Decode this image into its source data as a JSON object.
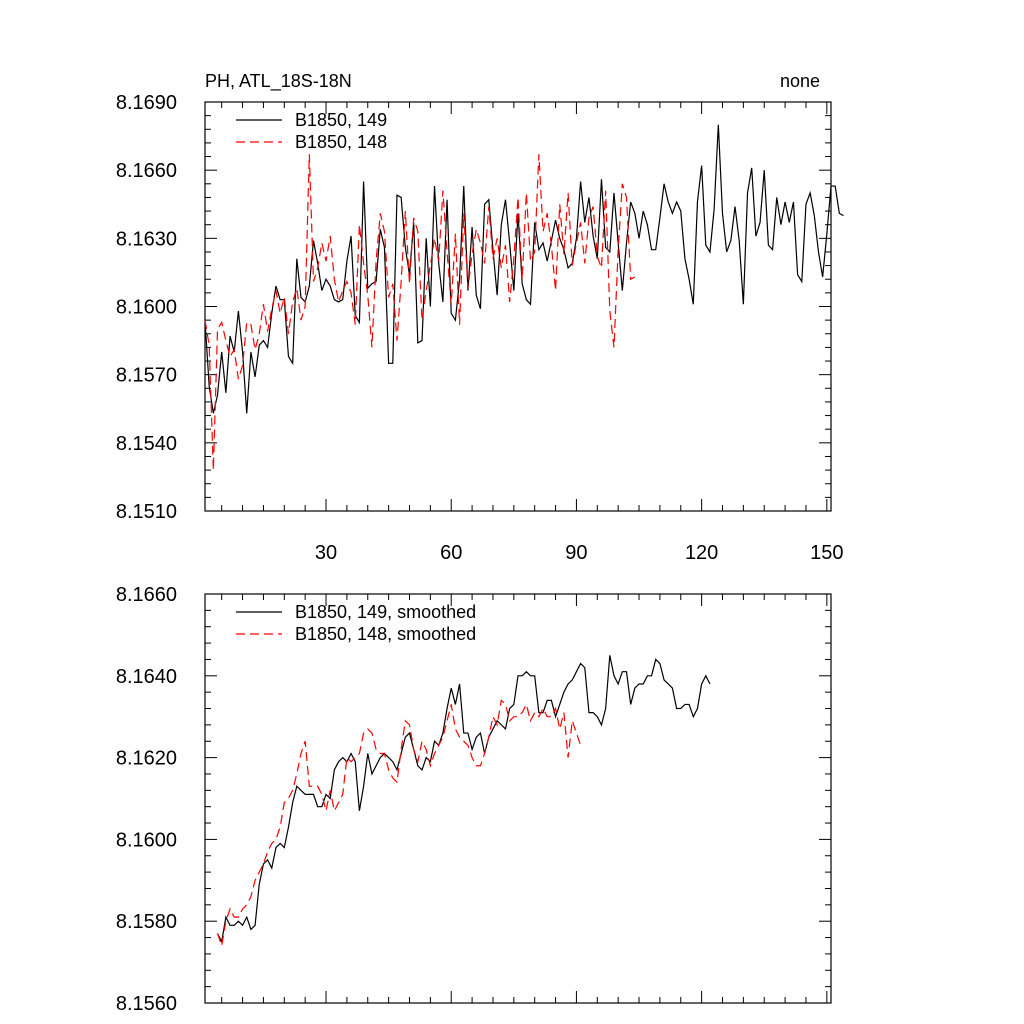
{
  "chart_data": [
    {
      "type": "line",
      "title_left": "PH, ATL_18S-18N",
      "title_right": "none",
      "xlim": [
        1,
        151
      ],
      "ylim": [
        8.151,
        8.169
      ],
      "x_ticks": [
        30,
        60,
        90,
        120,
        150
      ],
      "x_tick_labels": [
        "30",
        "60",
        "90",
        "120",
        "150"
      ],
      "y_ticks": [
        8.151,
        8.154,
        8.157,
        8.16,
        8.163,
        8.166,
        8.169
      ],
      "y_tick_labels": [
        "8.1510",
        "8.1540",
        "8.1570",
        "8.1600",
        "8.1630",
        "8.1660",
        "8.1690"
      ],
      "series": [
        {
          "name": "B1850, 149",
          "color": "#000000",
          "dash": "solid",
          "x_start": 1,
          "values": [
            8.1594,
            8.1565,
            8.1553,
            8.1561,
            8.158,
            8.1562,
            8.1587,
            8.158,
            8.1598,
            8.158,
            8.1553,
            8.158,
            8.1569,
            8.1583,
            8.1585,
            8.1582,
            8.1597,
            8.1609,
            8.1603,
            8.1603,
            8.1578,
            8.1575,
            8.1621,
            8.1604,
            8.1602,
            8.1609,
            8.1629,
            8.1619,
            8.1607,
            8.1612,
            8.1609,
            8.1603,
            8.1602,
            8.1603,
            8.162,
            8.1631,
            8.1596,
            8.1593,
            8.1655,
            8.1608,
            8.161,
            8.1611,
            8.1634,
            8.1626,
            8.1575,
            8.1575,
            8.1649,
            8.1648,
            8.1626,
            8.1614,
            8.1637,
            8.1584,
            8.1585,
            8.163,
            8.16,
            8.1653,
            8.1619,
            8.1602,
            8.1647,
            8.1597,
            8.1594,
            8.1612,
            8.1653,
            8.1607,
            8.1635,
            8.1605,
            8.1599,
            8.1645,
            8.1647,
            8.1625,
            8.1605,
            8.1636,
            8.1647,
            8.1628,
            8.1607,
            8.1641,
            8.161,
            8.1603,
            8.1601,
            8.1637,
            8.1625,
            8.1628,
            8.162,
            8.1629,
            8.1638,
            8.163,
            8.1625,
            8.1617,
            8.1619,
            8.163,
            8.1655,
            8.1637,
            8.1648,
            8.1631,
            8.1621,
            8.1656,
            8.1626,
            8.1624,
            8.165,
            8.1628,
            8.1607,
            8.1628,
            8.1646,
            8.1641,
            8.163,
            8.1642,
            8.1636,
            8.1625,
            8.1625,
            8.1639,
            8.1654,
            8.1646,
            8.1641,
            8.1646,
            8.1642,
            8.1621,
            8.1612,
            8.1601,
            8.1646,
            8.1662,
            8.1627,
            8.1624,
            8.1643,
            8.168,
            8.1641,
            8.1624,
            8.1629,
            8.1644,
            8.1629,
            8.1601,
            8.165,
            8.1661,
            8.1631,
            8.1637,
            8.166,
            8.1627,
            8.1625,
            8.1648,
            8.1636,
            8.1646,
            8.1637,
            8.1646,
            8.1614,
            8.1611,
            8.1645,
            8.165,
            8.164,
            8.1624,
            8.1613,
            8.1632,
            8.1653,
            8.1653,
            8.1641,
            8.164
          ]
        },
        {
          "name": "B1850, 148",
          "color": "#ff0000",
          "dash": "dashed",
          "x_start": 1,
          "values": [
            8.1594,
            8.1583,
            8.1528,
            8.159,
            8.1593,
            8.1585,
            8.1578,
            8.1581,
            8.1568,
            8.1574,
            8.1593,
            8.1592,
            8.1581,
            8.1588,
            8.1601,
            8.1589,
            8.1599,
            8.1607,
            8.1597,
            8.1604,
            8.1588,
            8.1602,
            8.1608,
            8.1594,
            8.16,
            8.1667,
            8.1611,
            8.1617,
            8.1628,
            8.162,
            8.1631,
            8.1612,
            8.1602,
            8.1607,
            8.1611,
            8.1606,
            8.1592,
            8.1636,
            8.1619,
            8.1605,
            8.1582,
            8.162,
            8.1641,
            8.1633,
            8.1604,
            8.161,
            8.1585,
            8.1611,
            8.1642,
            8.161,
            8.1639,
            8.1633,
            8.1594,
            8.1607,
            8.1618,
            8.163,
            8.162,
            8.1651,
            8.1624,
            8.1601,
            8.1632,
            8.1592,
            8.1641,
            8.1608,
            8.1623,
            8.1634,
            8.1628,
            8.1619,
            8.1644,
            8.1621,
            8.163,
            8.1617,
            8.1627,
            8.1602,
            8.1621,
            8.1648,
            8.1612,
            8.165,
            8.162,
            8.1624,
            8.1667,
            8.1633,
            8.1641,
            8.1627,
            8.1607,
            8.1645,
            8.1623,
            8.165,
            8.1618,
            8.1628,
            8.1637,
            8.1619,
            8.1639,
            8.1644,
            8.1622,
            8.1617,
            8.1651,
            8.1598,
            8.1582,
            8.1625,
            8.1654,
            8.1648,
            8.1612,
            8.1613
          ]
        }
      ]
    },
    {
      "type": "line",
      "xlim": [
        1,
        151
      ],
      "ylim": [
        8.156,
        8.166
      ],
      "x_ticks": [
        30,
        60,
        90,
        120,
        150
      ],
      "y_ticks": [
        8.156,
        8.158,
        8.16,
        8.162,
        8.164,
        8.166
      ],
      "y_tick_labels": [
        "8.1560",
        "8.1580",
        "8.1600",
        "8.1620",
        "8.1640",
        "8.1660"
      ],
      "series": [
        {
          "name": "B1850, 149, smoothed",
          "color": "#000000",
          "dash": "solid",
          "x_start": 4,
          "values": [
            8.1577,
            8.1575,
            8.1581,
            8.1579,
            8.1579,
            8.158,
            8.1579,
            8.1581,
            8.1578,
            8.1579,
            8.1589,
            8.1594,
            8.1595,
            8.1593,
            8.1598,
            8.1599,
            8.1598,
            8.1603,
            8.1609,
            8.1613,
            8.1612,
            8.1611,
            8.1611,
            8.1611,
            8.1608,
            8.1608,
            8.1611,
            8.161,
            8.1617,
            8.1619,
            8.162,
            8.1619,
            8.1621,
            8.1619,
            8.1607,
            8.1613,
            8.1621,
            8.1616,
            8.1618,
            8.162,
            8.1621,
            8.162,
            8.1619,
            8.1617,
            8.1621,
            8.1625,
            8.1626,
            8.1622,
            8.1618,
            8.1617,
            8.162,
            8.1619,
            8.1624,
            8.1623,
            8.1626,
            8.1632,
            8.1637,
            8.1633,
            8.1638,
            8.1626,
            8.1626,
            8.1622,
            8.1625,
            8.1626,
            8.1621,
            8.1625,
            8.1627,
            8.1629,
            8.1628,
            8.1627,
            8.1632,
            8.1633,
            8.164,
            8.164,
            8.1641,
            8.164,
            8.164,
            8.1631,
            8.1631,
            8.1634,
            8.1634,
            8.163,
            8.1633,
            8.1636,
            8.1638,
            8.1639,
            8.1641,
            8.1643,
            8.1642,
            8.1631,
            8.1631,
            8.163,
            8.1628,
            8.1632,
            8.1645,
            8.164,
            8.1638,
            8.1641,
            8.1641,
            8.1633,
            8.1637,
            8.1638,
            8.1638,
            8.164,
            8.164,
            8.1644,
            8.1643,
            8.1639,
            8.1638,
            8.1637,
            8.1632,
            8.1632,
            8.1633,
            8.1633,
            8.163,
            8.1632,
            8.1638,
            8.164,
            8.1638
          ]
        },
        {
          "name": "B1850, 148, smoothed",
          "color": "#ff0000",
          "dash": "dashed",
          "x_start": 4,
          "values": [
            8.1577,
            8.1574,
            8.158,
            8.1583,
            8.1581,
            8.1581,
            8.1583,
            8.1584,
            8.1586,
            8.159,
            8.1592,
            8.1594,
            8.1597,
            8.1599,
            8.16,
            8.1603,
            8.1609,
            8.161,
            8.1612,
            8.1616,
            8.1621,
            8.1624,
            8.1613,
            8.1613,
            8.1613,
            8.1611,
            8.1607,
            8.1612,
            8.1607,
            8.1609,
            8.1611,
            8.162,
            8.1619,
            8.162,
            8.1621,
            8.1626,
            8.1627,
            8.1626,
            8.1622,
            8.1621,
            8.1621,
            8.1617,
            8.1615,
            8.1614,
            8.1622,
            8.1629,
            8.1628,
            8.1622,
            8.1619,
            8.1624,
            8.1622,
            8.1618,
            8.1621,
            8.1623,
            8.1625,
            8.1629,
            8.1633,
            8.1627,
            8.1625,
            8.1624,
            8.1623,
            8.162,
            8.1618,
            8.1618,
            8.1621,
            8.1625,
            8.163,
            8.1628,
            8.1634,
            8.1633,
            8.1629,
            8.163,
            8.163,
            8.1631,
            8.1633,
            8.1629,
            8.1631,
            8.163,
            8.1632,
            8.163,
            8.163,
            8.1632,
            8.1627,
            8.1631,
            8.162,
            8.1629,
            8.1626,
            8.1623
          ]
        }
      ]
    }
  ]
}
